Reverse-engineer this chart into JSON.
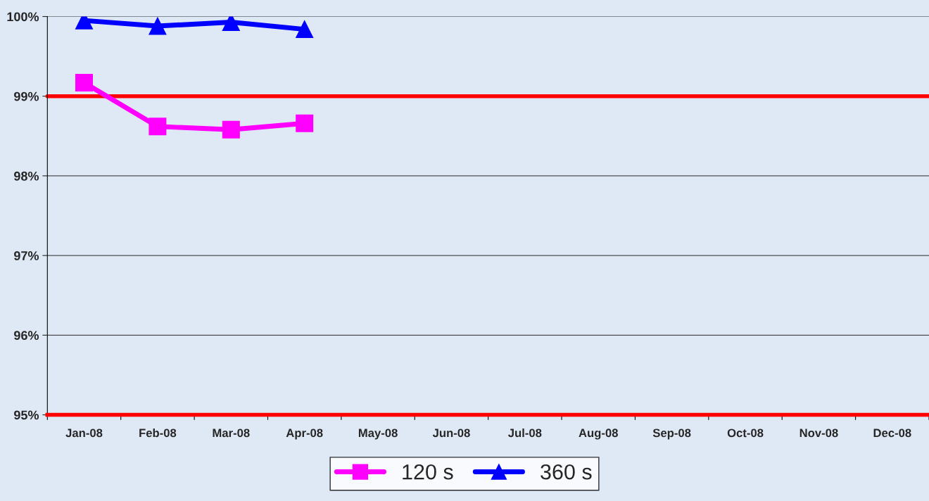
{
  "chart_data": {
    "type": "line",
    "categories": [
      "Jan-08",
      "Feb-08",
      "Mar-08",
      "Apr-08",
      "May-08",
      "Jun-08",
      "Jul-08",
      "Aug-08",
      "Sep-08",
      "Oct-08",
      "Nov-08",
      "Dec-08"
    ],
    "series": [
      {
        "name": "120 s",
        "color": "#ff00ff",
        "marker": "square",
        "values": [
          99.17,
          98.62,
          98.58,
          98.66,
          null,
          null,
          null,
          null,
          null,
          null,
          null,
          null
        ]
      },
      {
        "name": "360 s",
        "color": "#0000ff",
        "marker": "triangle",
        "values": [
          99.95,
          99.88,
          99.93,
          99.84,
          null,
          null,
          null,
          null,
          null,
          null,
          null,
          null
        ]
      }
    ],
    "ylim": [
      95,
      100
    ],
    "yticks": [
      {
        "value": 95,
        "label": "95%"
      },
      {
        "value": 96,
        "label": "96%"
      },
      {
        "value": 97,
        "label": "97%"
      },
      {
        "value": 98,
        "label": "98%"
      },
      {
        "value": 99,
        "label": "99%"
      },
      {
        "value": 100,
        "label": "100%"
      }
    ],
    "ref_lines": [
      {
        "axis": "y",
        "value": 99,
        "label": null,
        "color": "#ff0000"
      }
    ],
    "grid": "y",
    "legend": "bottom",
    "line_style": "solid"
  }
}
